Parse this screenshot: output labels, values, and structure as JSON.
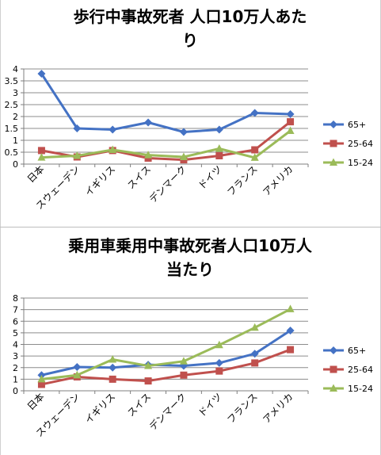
{
  "chart_data": [
    {
      "type": "line",
      "title": "歩行中事故死者  人口10万人あたり",
      "title_lines": [
        "歩行中事故死者  人口10万人あた",
        "り"
      ],
      "categories": [
        "日本",
        "スウェーデン",
        "イギリス",
        "スイス",
        "デンマーク",
        "ドイツ",
        "フランス",
        "アメリカ"
      ],
      "ylim": [
        0,
        4
      ],
      "yticks": [
        "0",
        "0.5",
        "1",
        "1.5",
        "2",
        "2.5",
        "3",
        "3.5",
        "4"
      ],
      "grid": true,
      "legend_position": "right",
      "series": [
        {
          "name": "65+",
          "color": "#4472C4",
          "marker": "diamond",
          "values": [
            3.8,
            1.5,
            1.45,
            1.75,
            1.35,
            1.45,
            2.15,
            2.1
          ]
        },
        {
          "name": "25-64",
          "color": "#C0504D",
          "marker": "square",
          "values": [
            0.57,
            0.3,
            0.57,
            0.25,
            0.18,
            0.35,
            0.6,
            1.78
          ]
        },
        {
          "name": "15-24",
          "color": "#9BBB59",
          "marker": "triangle",
          "values": [
            0.28,
            0.35,
            0.6,
            0.38,
            0.3,
            0.65,
            0.27,
            1.4
          ]
        }
      ]
    },
    {
      "type": "line",
      "title": "乗用車乗用中事故死者人口10万人当たり",
      "title_lines": [
        "乗用車乗用中事故死者人口10万人",
        "当たり"
      ],
      "categories": [
        "日本",
        "スウェーデン",
        "イギリス",
        "スイス",
        "デンマーク",
        "ドイツ",
        "フランス",
        "アメリカ"
      ],
      "ylim": [
        0,
        8
      ],
      "yticks": [
        "0",
        "1",
        "2",
        "3",
        "4",
        "5",
        "6",
        "7",
        "8"
      ],
      "grid": true,
      "legend_position": "right",
      "series": [
        {
          "name": "65+",
          "color": "#4472C4",
          "marker": "diamond",
          "values": [
            1.35,
            2.05,
            2.0,
            2.25,
            2.15,
            2.4,
            3.2,
            5.2
          ]
        },
        {
          "name": "25-64",
          "color": "#C0504D",
          "marker": "square",
          "values": [
            0.55,
            1.2,
            1.0,
            0.85,
            1.35,
            1.7,
            2.4,
            3.55
          ]
        },
        {
          "name": "15-24",
          "color": "#9BBB59",
          "marker": "triangle",
          "values": [
            1.0,
            1.35,
            2.7,
            2.15,
            2.55,
            3.95,
            5.45,
            7.05
          ]
        }
      ]
    }
  ]
}
